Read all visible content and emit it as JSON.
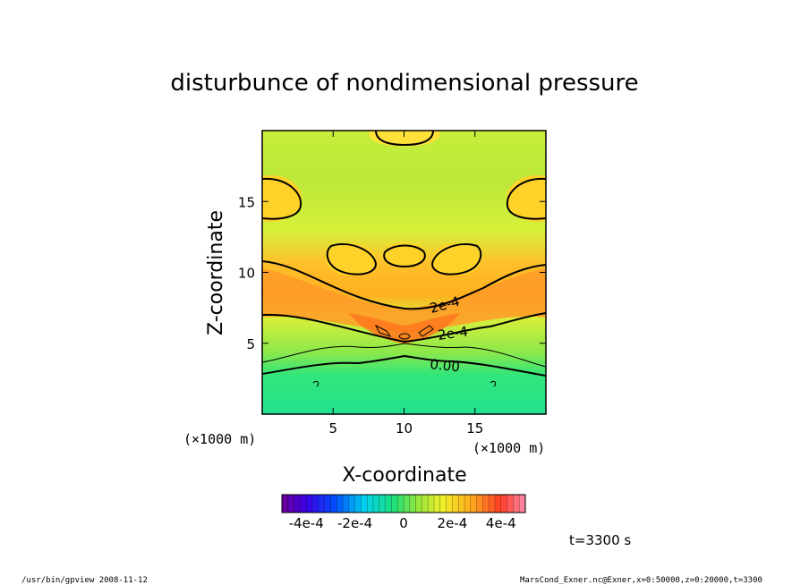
{
  "chart_data": {
    "type": "heatmap",
    "title": "disturbunce of nondimensional pressure",
    "xlabel": "X-coordinate",
    "ylabel": "Z-coordinate",
    "x_unit": "(×1000 m)",
    "y_unit": "(×1000 m)",
    "xlim": [
      0,
      20
    ],
    "ylim": [
      0,
      20
    ],
    "xticks": [
      5,
      10,
      15
    ],
    "yticks": [
      5,
      10,
      15
    ],
    "contour_labels": [
      "2e-4",
      "2e-4",
      "0.00"
    ],
    "colorbar": {
      "range": [
        -0.0005,
        0.0005
      ],
      "tick_labels": [
        "-4e-4",
        "-2e-4",
        "0",
        "2e-4",
        "4e-4"
      ],
      "tick_values": [
        -0.0004,
        -0.0002,
        0,
        0.0002,
        0.0004
      ]
    },
    "time_label": "t=3300 s",
    "field_samples": {
      "z": [
        0,
        2,
        3,
        4,
        5,
        6,
        7,
        9,
        11,
        13,
        15,
        17,
        20
      ],
      "value_at_center": [
        -0.00025,
        -0.0002,
        -5e-05,
        5e-05,
        0.00025,
        0.0003,
        0.00022,
        0.00014,
        0.00012,
        0.0001,
        9e-05,
        0.0001,
        0.00016
      ]
    }
  },
  "footer": {
    "left": "/usr/bin/gpview   2008-11-12",
    "right": "MarsCond_Exner.nc@Exner,x=0:50000,z=0:20000,t=3300"
  }
}
